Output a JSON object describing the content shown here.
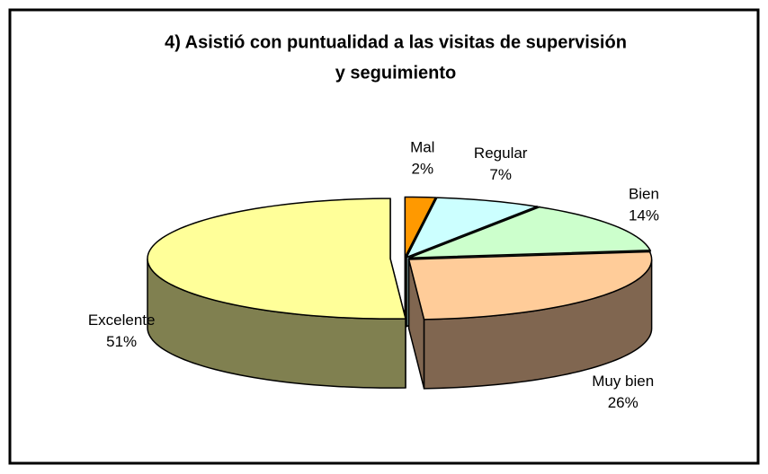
{
  "chart_data": {
    "type": "pie3d",
    "title": [
      "4) Asistió con puntualidad a las visitas de supervisión",
      "y seguimiento"
    ],
    "categories": [
      "Mal",
      "Regular",
      "Bien",
      "Muy bien",
      "Excelente"
    ],
    "values": [
      2,
      7,
      14,
      26,
      51
    ],
    "value_labels": [
      "2%",
      "7%",
      "14%",
      "26%",
      "51%"
    ],
    "colors": [
      "#ff9900",
      "#ccffff",
      "#ccffcc",
      "#ffcc99",
      "#ffff99"
    ],
    "side_colors": [
      "#995c00",
      "#7a9999",
      "#7a997a",
      "#806650",
      "#808050"
    ]
  }
}
